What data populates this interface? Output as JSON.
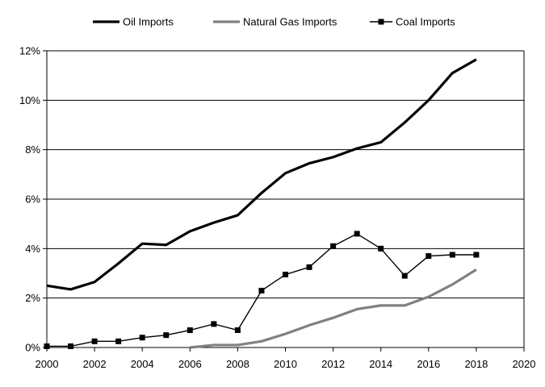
{
  "chart_data": {
    "type": "line",
    "title": "",
    "xlabel": "",
    "ylabel": "",
    "xlim": [
      2000,
      2020
    ],
    "ylim": [
      0,
      12
    ],
    "x_ticks": [
      2000,
      2002,
      2004,
      2006,
      2008,
      2010,
      2012,
      2014,
      2016,
      2018,
      2020
    ],
    "y_ticks": [
      0,
      2,
      4,
      6,
      8,
      10,
      12
    ],
    "x_tick_labels": [
      "2000",
      "2002",
      "2004",
      "2006",
      "2008",
      "2010",
      "2012",
      "2014",
      "2016",
      "2018",
      "2020"
    ],
    "y_tick_labels": [
      "0%",
      "2%",
      "4%",
      "6%",
      "8%",
      "10%",
      "12%"
    ],
    "y_unit": "%",
    "grid": "horizontal",
    "legend_position": "top",
    "series": [
      {
        "name": "Oil Imports",
        "color": "#000000",
        "style": "thick-line",
        "x": [
          2000,
          2001,
          2002,
          2003,
          2004,
          2005,
          2006,
          2007,
          2008,
          2009,
          2010,
          2011,
          2012,
          2013,
          2014,
          2015,
          2016,
          2017,
          2018
        ],
        "y": [
          2.5,
          2.35,
          2.65,
          3.4,
          4.2,
          4.15,
          4.7,
          5.05,
          5.35,
          6.25,
          7.05,
          7.45,
          7.7,
          8.05,
          8.3,
          9.1,
          10.0,
          11.1,
          11.65
        ]
      },
      {
        "name": "Natural Gas Imports",
        "color": "#808080",
        "style": "thick-line",
        "x": [
          2006,
          2007,
          2008,
          2009,
          2010,
          2011,
          2012,
          2013,
          2014,
          2015,
          2016,
          2017,
          2018
        ],
        "y": [
          0.0,
          0.1,
          0.1,
          0.25,
          0.55,
          0.9,
          1.2,
          1.55,
          1.7,
          1.7,
          2.05,
          2.55,
          3.15
        ]
      },
      {
        "name": "Coal Imports",
        "color": "#000000",
        "style": "line-square-markers",
        "x": [
          2000,
          2001,
          2002,
          2003,
          2004,
          2005,
          2006,
          2007,
          2008,
          2009,
          2010,
          2011,
          2012,
          2013,
          2014,
          2015,
          2016,
          2017,
          2018
        ],
        "y": [
          0.05,
          0.05,
          0.25,
          0.25,
          0.4,
          0.5,
          0.7,
          0.95,
          0.7,
          2.3,
          2.95,
          3.25,
          4.1,
          4.6,
          4.0,
          2.9,
          3.7,
          3.75,
          3.75
        ]
      }
    ]
  }
}
